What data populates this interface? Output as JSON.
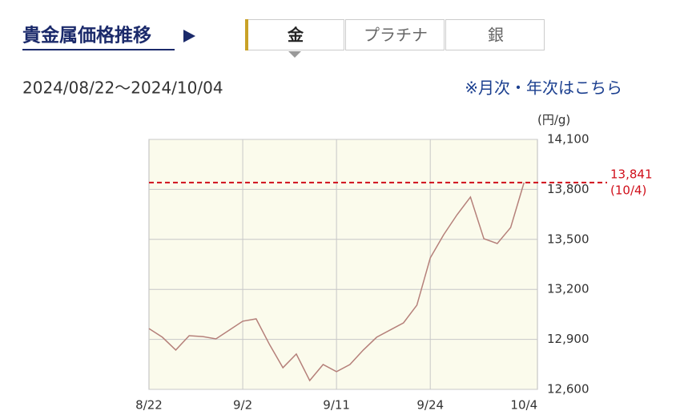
{
  "header": {
    "title": "貴金属価格推移"
  },
  "tabs": {
    "items": [
      "金",
      "プラチナ",
      "銀"
    ],
    "active": 0
  },
  "date_range": "2024/08/22〜2024/10/04",
  "link": "※月次・年次はこちら",
  "chart_data": {
    "type": "line",
    "y_unit": "(円/g)",
    "categories": [
      "8/22",
      null,
      null,
      null,
      null,
      null,
      null,
      "9/2",
      null,
      null,
      null,
      null,
      null,
      null,
      "9/11",
      null,
      null,
      null,
      null,
      null,
      null,
      "9/24",
      null,
      null,
      null,
      null,
      null,
      null,
      "10/4"
    ],
    "values": [
      12965,
      12913,
      12836,
      12922,
      12917,
      12903,
      12956,
      13009,
      13023,
      12869,
      12730,
      12812,
      12653,
      12749,
      12706,
      12749,
      12836,
      12913,
      12956,
      12999,
      13105,
      13389,
      13528,
      13648,
      13754,
      13504,
      13475,
      13571,
      13841
    ],
    "color": "#b5807a",
    "ylim": [
      12600,
      14100
    ],
    "yticks": [
      {
        "value": 12600,
        "label": "12,600"
      },
      {
        "value": 12900,
        "label": "12,900"
      },
      {
        "value": 13200,
        "label": "13,200"
      },
      {
        "value": 13500,
        "label": "13,500"
      },
      {
        "value": 13800,
        "label": "13,800"
      },
      {
        "value": 14100,
        "label": "14,100"
      }
    ],
    "grid": true,
    "reference_line": {
      "value": 13841,
      "label": "13,841",
      "date": "(10/4)",
      "color": "#d0101b"
    }
  }
}
